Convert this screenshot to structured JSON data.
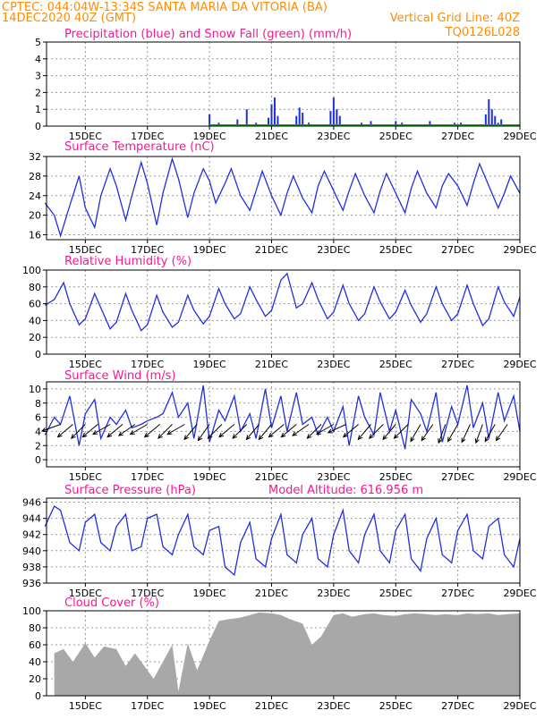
{
  "header": {
    "line1": "CPTEC:  044:04W-13:34S  SANTA MARIA DA VITORIA (BA)",
    "line2_left": "14DEC2020 40Z (GMT)",
    "line2_right": "Vertical Grid Line: 40Z",
    "code": "TQ0126L028"
  },
  "colors": {
    "header": "#ff8c00",
    "title": "#ff1493",
    "line": "#1f2fe0",
    "snow": "#00b000",
    "cloud": "#a8a8a8",
    "grid": "#9a9a9a"
  },
  "chart_data": [
    {
      "id": "precip",
      "type": "bar",
      "title": "Precipitation (blue) and Snow Fall (green) (mm/h)",
      "ylim": [
        0,
        5
      ],
      "yticks": [
        0,
        1,
        2,
        3,
        4,
        5
      ],
      "xticks": [
        "15DEC",
        "17DEC",
        "19DEC",
        "21DEC",
        "23DEC",
        "25DEC",
        "27DEC",
        "29DEC"
      ],
      "grid": true,
      "x_days": [
        19.0,
        19.3,
        19.9,
        20.2,
        20.5,
        20.9,
        21.0,
        21.1,
        21.2,
        21.4,
        21.8,
        21.9,
        22.0,
        22.2,
        22.9,
        23.0,
        23.1,
        23.2,
        23.4,
        23.9,
        24.2,
        25.0,
        25.2,
        26.1,
        26.9,
        27.1,
        27.9,
        28.0,
        28.1,
        28.2,
        28.3,
        28.4
      ],
      "values": [
        0.7,
        0.2,
        0.4,
        1.0,
        0.2,
        0.5,
        1.3,
        1.7,
        0.6,
        0.1,
        0.6,
        1.1,
        0.8,
        0.2,
        0.9,
        1.7,
        1.0,
        0.6,
        0.1,
        0.2,
        0.3,
        0.3,
        0.2,
        0.3,
        0.2,
        0.2,
        0.7,
        1.6,
        1.0,
        0.6,
        0.2,
        0.4
      ],
      "snow_values": [],
      "series": [
        {
          "name": "Precipitation",
          "color": "blue"
        },
        {
          "name": "Snow Fall",
          "color": "green"
        }
      ]
    },
    {
      "id": "temp",
      "type": "line",
      "title": "Surface Temperature (nC)",
      "ylim": [
        15,
        32
      ],
      "yticks": [
        16,
        20,
        24,
        28,
        32
      ],
      "xticks": [
        "15DEC",
        "17DEC",
        "19DEC",
        "21DEC",
        "23DEC",
        "25DEC",
        "27DEC",
        "29DEC"
      ],
      "grid": true,
      "x_days": [
        13.7,
        14.0,
        14.2,
        14.5,
        14.8,
        15.0,
        15.3,
        15.5,
        15.8,
        16.0,
        16.3,
        16.5,
        16.8,
        17.0,
        17.3,
        17.5,
        17.8,
        18.0,
        18.3,
        18.5,
        18.8,
        19.0,
        19.2,
        19.5,
        19.7,
        20.0,
        20.3,
        20.5,
        20.7,
        21.0,
        21.3,
        21.5,
        21.7,
        22.0,
        22.3,
        22.5,
        22.7,
        23.0,
        23.3,
        23.5,
        23.7,
        24.0,
        24.3,
        24.5,
        24.7,
        25.0,
        25.3,
        25.5,
        25.7,
        26.0,
        26.3,
        26.5,
        26.7,
        27.0,
        27.3,
        27.5,
        27.7,
        28.0,
        28.3,
        28.5,
        28.7,
        29.0
      ],
      "values": [
        22.5,
        20.0,
        15.8,
        22.0,
        28.0,
        21.5,
        17.5,
        24.0,
        29.5,
        26.0,
        19.0,
        24.0,
        30.8,
        26.5,
        18.0,
        24.5,
        31.5,
        27.5,
        19.5,
        24.5,
        29.5,
        27.0,
        22.5,
        26.5,
        29.5,
        24.0,
        21.0,
        25.0,
        29.0,
        24.0,
        20.0,
        24.5,
        28.0,
        23.5,
        20.5,
        26.0,
        29.0,
        25.0,
        21.0,
        25.0,
        28.5,
        24.0,
        20.5,
        25.0,
        28.5,
        24.5,
        20.5,
        25.5,
        29.0,
        24.5,
        21.5,
        26.0,
        28.5,
        26.0,
        22.0,
        26.5,
        30.5,
        26.0,
        21.5,
        24.5,
        28.0,
        24.5
      ]
    },
    {
      "id": "rh",
      "type": "line",
      "title": "Relative Humidity (%)",
      "ylim": [
        0,
        100
      ],
      "yticks": [
        0,
        20,
        40,
        60,
        80,
        100
      ],
      "xticks": [
        "15DEC",
        "17DEC",
        "19DEC",
        "21DEC",
        "23DEC",
        "25DEC",
        "27DEC",
        "29DEC"
      ],
      "grid": true,
      "x_days": [
        13.7,
        14.0,
        14.3,
        14.5,
        14.8,
        15.0,
        15.3,
        15.5,
        15.8,
        16.0,
        16.3,
        16.5,
        16.8,
        17.0,
        17.3,
        17.5,
        17.8,
        18.0,
        18.3,
        18.5,
        18.8,
        19.0,
        19.3,
        19.5,
        19.8,
        20.0,
        20.3,
        20.5,
        20.8,
        21.0,
        21.3,
        21.5,
        21.8,
        22.0,
        22.3,
        22.5,
        22.8,
        23.0,
        23.3,
        23.5,
        23.8,
        24.0,
        24.3,
        24.5,
        24.8,
        25.0,
        25.3,
        25.5,
        25.8,
        26.0,
        26.3,
        26.5,
        26.8,
        27.0,
        27.3,
        27.5,
        27.8,
        28.0,
        28.3,
        28.5,
        28.8,
        29.0
      ],
      "values": [
        58,
        65,
        85,
        60,
        35,
        42,
        72,
        55,
        30,
        38,
        72,
        52,
        28,
        35,
        70,
        50,
        32,
        38,
        70,
        52,
        36,
        45,
        78,
        60,
        42,
        48,
        80,
        65,
        45,
        52,
        88,
        96,
        55,
        60,
        85,
        65,
        42,
        50,
        82,
        60,
        40,
        48,
        80,
        62,
        42,
        50,
        76,
        58,
        38,
        48,
        80,
        60,
        40,
        48,
        82,
        60,
        34,
        42,
        80,
        62,
        45,
        68
      ]
    },
    {
      "id": "wind",
      "type": "line",
      "title": "Surface Wind (m/s)",
      "ylim": [
        -1,
        11
      ],
      "yticks": [
        0,
        2,
        4,
        6,
        8,
        10
      ],
      "xticks": [
        "15DEC",
        "17DEC",
        "19DEC",
        "21DEC",
        "23DEC",
        "25DEC",
        "27DEC",
        "29DEC"
      ],
      "grid": true,
      "x_days": [
        13.7,
        14.0,
        14.2,
        14.5,
        14.8,
        15.0,
        15.3,
        15.5,
        15.8,
        16.0,
        16.3,
        16.5,
        16.8,
        17.0,
        17.3,
        17.5,
        17.8,
        18.0,
        18.3,
        18.5,
        18.8,
        19.0,
        19.3,
        19.5,
        19.8,
        20.0,
        20.3,
        20.5,
        20.8,
        21.0,
        21.3,
        21.5,
        21.8,
        22.0,
        22.3,
        22.5,
        22.8,
        23.0,
        23.3,
        23.5,
        23.8,
        24.0,
        24.3,
        24.5,
        24.8,
        25.0,
        25.3,
        25.5,
        25.8,
        26.0,
        26.3,
        26.5,
        26.8,
        27.0,
        27.3,
        27.5,
        27.8,
        28.0,
        28.3,
        28.5,
        28.8,
        29.0
      ],
      "values": [
        3.5,
        6.0,
        5.0,
        9.0,
        2.0,
        6.5,
        8.5,
        3.0,
        6.0,
        5.0,
        7.0,
        4.5,
        5.0,
        5.5,
        6.0,
        6.5,
        9.5,
        6.0,
        8.0,
        3.0,
        10.5,
        2.5,
        7.0,
        5.5,
        9.0,
        4.0,
        6.5,
        3.0,
        10.0,
        4.5,
        9.0,
        4.0,
        9.5,
        5.0,
        6.0,
        3.5,
        6.0,
        4.0,
        7.5,
        2.0,
        9.0,
        6.0,
        3.5,
        9.5,
        4.0,
        7.0,
        1.5,
        8.5,
        6.5,
        4.0,
        9.5,
        2.5,
        7.5,
        5.0,
        10.5,
        4.5,
        8.0,
        3.0,
        9.5,
        5.5,
        9.0,
        4.0
      ],
      "vectors": [
        {
          "day": 14.2,
          "dir": 250
        },
        {
          "day": 14.6,
          "dir": 230
        },
        {
          "day": 15.0,
          "dir": 225
        },
        {
          "day": 15.4,
          "dir": 230
        },
        {
          "day": 15.8,
          "dir": 240
        },
        {
          "day": 16.2,
          "dir": 230
        },
        {
          "day": 16.6,
          "dir": 235
        },
        {
          "day": 17.0,
          "dir": 240
        },
        {
          "day": 17.4,
          "dir": 230
        },
        {
          "day": 17.8,
          "dir": 225
        },
        {
          "day": 18.2,
          "dir": 240
        },
        {
          "day": 18.6,
          "dir": 220
        },
        {
          "day": 19.0,
          "dir": 215
        },
        {
          "day": 19.4,
          "dir": 225
        },
        {
          "day": 19.8,
          "dir": 230
        },
        {
          "day": 20.2,
          "dir": 225
        },
        {
          "day": 20.6,
          "dir": 220
        },
        {
          "day": 21.0,
          "dir": 220
        },
        {
          "day": 21.4,
          "dir": 230
        },
        {
          "day": 21.8,
          "dir": 230
        },
        {
          "day": 22.2,
          "dir": 235
        },
        {
          "day": 22.6,
          "dir": 225
        },
        {
          "day": 23.0,
          "dir": 240
        },
        {
          "day": 23.4,
          "dir": 245
        },
        {
          "day": 23.8,
          "dir": 230
        },
        {
          "day": 24.2,
          "dir": 220
        },
        {
          "day": 24.6,
          "dir": 225
        },
        {
          "day": 25.0,
          "dir": 220
        },
        {
          "day": 25.4,
          "dir": 225
        },
        {
          "day": 25.8,
          "dir": 210
        },
        {
          "day": 26.2,
          "dir": 215
        },
        {
          "day": 26.6,
          "dir": 200
        },
        {
          "day": 27.0,
          "dir": 210
        },
        {
          "day": 27.4,
          "dir": 205
        },
        {
          "day": 27.8,
          "dir": 200
        },
        {
          "day": 28.2,
          "dir": 210
        },
        {
          "day": 28.6,
          "dir": 215
        }
      ]
    },
    {
      "id": "pressure",
      "type": "line",
      "title": "Surface Pressure (hPa)",
      "subtitle": "Model Altitude: 616.956  m",
      "ylim": [
        936,
        946.5
      ],
      "yticks": [
        936,
        938,
        940,
        942,
        944,
        946
      ],
      "xticks": [
        "15DEC",
        "17DEC",
        "19DEC",
        "21DEC",
        "23DEC",
        "25DEC",
        "27DEC",
        "29DEC"
      ],
      "grid": true,
      "x_days": [
        13.7,
        14.0,
        14.2,
        14.5,
        14.8,
        15.0,
        15.3,
        15.5,
        15.8,
        16.0,
        16.3,
        16.5,
        16.8,
        17.0,
        17.3,
        17.5,
        17.8,
        18.0,
        18.3,
        18.5,
        18.8,
        19.0,
        19.3,
        19.5,
        19.8,
        20.0,
        20.3,
        20.5,
        20.8,
        21.0,
        21.3,
        21.5,
        21.8,
        22.0,
        22.3,
        22.5,
        22.8,
        23.0,
        23.3,
        23.5,
        23.8,
        24.0,
        24.3,
        24.5,
        24.8,
        25.0,
        25.3,
        25.5,
        25.8,
        26.0,
        26.3,
        26.5,
        26.8,
        27.0,
        27.3,
        27.5,
        27.8,
        28.0,
        28.3,
        28.5,
        28.8,
        29.0
      ],
      "values": [
        943.0,
        945.5,
        945.0,
        941.0,
        940.0,
        943.5,
        944.5,
        941.0,
        940.0,
        943.0,
        944.5,
        940.0,
        940.5,
        944.0,
        944.5,
        940.5,
        939.5,
        942.0,
        944.5,
        940.5,
        939.5,
        942.5,
        943.0,
        938.0,
        937.0,
        941.0,
        943.5,
        939.0,
        938.0,
        941.5,
        944.5,
        939.5,
        938.5,
        942.0,
        944.0,
        939.0,
        938.0,
        942.0,
        945.0,
        940.0,
        938.5,
        942.0,
        944.5,
        940.0,
        938.5,
        942.5,
        944.5,
        939.0,
        937.5,
        941.5,
        944.0,
        939.5,
        938.5,
        942.5,
        944.5,
        940.0,
        939.0,
        943.0,
        944.0,
        939.5,
        938.0,
        941.5
      ]
    },
    {
      "id": "cloud",
      "type": "area",
      "title": "Cloud Cover (%)",
      "ylim": [
        0,
        100
      ],
      "yticks": [
        0,
        20,
        40,
        60,
        80,
        100
      ],
      "xticks": [
        "15DEC",
        "17DEC",
        "19DEC",
        "21DEC",
        "23DEC",
        "25DEC",
        "27DEC",
        "29DEC"
      ],
      "grid": true,
      "x_days": [
        14.0,
        14.3,
        14.6,
        15.0,
        15.3,
        15.6,
        16.0,
        16.3,
        16.6,
        17.0,
        17.2,
        17.5,
        17.8,
        18.0,
        18.3,
        18.6,
        19.0,
        19.3,
        19.6,
        20.0,
        20.3,
        20.6,
        21.0,
        21.3,
        21.6,
        22.0,
        22.3,
        22.6,
        23.0,
        23.3,
        23.6,
        24.0,
        24.3,
        24.6,
        25.0,
        25.3,
        25.6,
        26.0,
        26.3,
        26.6,
        27.0,
        27.3,
        27.6,
        28.0,
        28.3,
        28.6,
        29.0
      ],
      "values": [
        50,
        55,
        40,
        62,
        45,
        58,
        55,
        35,
        50,
        30,
        20,
        40,
        60,
        5,
        62,
        30,
        65,
        88,
        90,
        92,
        95,
        98,
        97,
        95,
        90,
        85,
        60,
        70,
        95,
        97,
        93,
        96,
        97,
        95,
        94,
        96,
        97,
        96,
        95,
        96,
        95,
        97,
        96,
        97,
        95,
        96,
        97
      ]
    }
  ]
}
